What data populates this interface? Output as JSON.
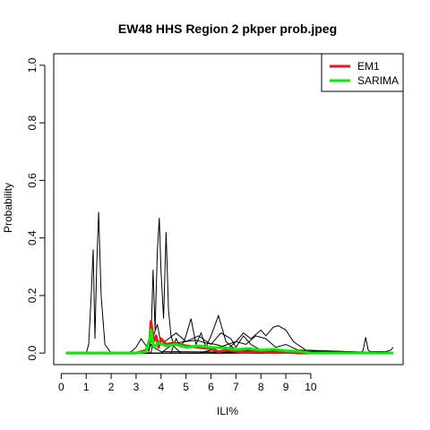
{
  "chart_data": {
    "type": "line",
    "title": "EW48 HHS Region 2 pkper prob.jpeg",
    "xlabel": "ILI%",
    "ylabel": "Probability",
    "xlim": [
      -0.3,
      13.7
    ],
    "ylim": [
      -0.04,
      1.04
    ],
    "xticks": [
      0,
      1,
      2,
      3,
      4,
      5,
      6,
      7,
      8,
      9,
      10
    ],
    "xtick_labels": [
      "0",
      "1",
      "2",
      "3",
      "4",
      "5",
      "6",
      "7",
      "8",
      "9",
      "10"
    ],
    "yticks": [
      0.0,
      0.2,
      0.4,
      0.6,
      0.8,
      1.0
    ],
    "ytick_labels": [
      "0.0",
      "0.2",
      "0.4",
      "0.6",
      "0.8",
      "1.0"
    ],
    "legend": {
      "position": "top-right"
    },
    "series": [
      {
        "name": "EM1",
        "color": "#e41a1c",
        "width": 3,
        "x": [
          0.2,
          3.0,
          3.4,
          3.55,
          3.6,
          3.7,
          3.8,
          3.9,
          4.0,
          4.2,
          4.5,
          5.0,
          5.5,
          6.0,
          6.3,
          6.7,
          7.2,
          8.0,
          8.5,
          9.0,
          9.5,
          10.0
        ],
        "y": [
          0.0,
          0.0,
          0.01,
          0.05,
          0.11,
          0.04,
          0.06,
          0.02,
          0.05,
          0.03,
          0.035,
          0.025,
          0.02,
          0.015,
          0.005,
          0.01,
          0.003,
          0.005,
          0.002,
          0.004,
          0.0,
          0.0
        ]
      },
      {
        "name": "SARIMA",
        "color": "#00ee00",
        "width": 3,
        "x": [
          0.2,
          3.0,
          3.4,
          3.55,
          3.6,
          3.7,
          3.9,
          4.2,
          4.6,
          5.0,
          5.5,
          6.0,
          6.5,
          7.0,
          7.5,
          8.0,
          8.5,
          9.0,
          9.5,
          10.0,
          12.0,
          13.3
        ],
        "y": [
          0.0,
          0.0,
          0.005,
          0.05,
          0.08,
          0.02,
          0.035,
          0.025,
          0.03,
          0.02,
          0.025,
          0.02,
          0.018,
          0.012,
          0.015,
          0.01,
          0.013,
          0.008,
          0.006,
          0.0,
          0.0,
          0.0
        ]
      }
    ],
    "thin_series": [
      {
        "color": "#000000",
        "x": [
          0.2,
          1.0,
          1.1,
          1.2,
          1.28,
          1.35,
          1.42,
          1.5,
          1.6,
          1.75,
          2.0,
          13.3
        ],
        "y": [
          0,
          0,
          0.03,
          0.2,
          0.36,
          0.05,
          0.3,
          0.49,
          0.2,
          0.03,
          0,
          0
        ]
      },
      {
        "color": "#000000",
        "x": [
          0.2,
          3.5,
          3.6,
          3.68,
          3.76,
          3.85,
          3.93,
          4.0,
          4.1,
          4.2,
          4.3,
          4.4,
          4.55,
          4.8,
          13.3
        ],
        "y": [
          0,
          0,
          0.05,
          0.29,
          0.08,
          0.35,
          0.47,
          0.28,
          0.12,
          0.42,
          0.15,
          0.06,
          0.02,
          0,
          0
        ]
      },
      {
        "color": "#000000",
        "x": [
          0.2,
          3.6,
          3.7,
          3.85,
          4.0,
          4.3,
          4.6,
          5.0,
          5.5,
          6.0,
          6.4,
          6.8,
          7.0,
          7.3,
          7.6,
          8.0,
          8.5,
          13.3
        ],
        "y": [
          0,
          0,
          0.06,
          0.1,
          0.03,
          0.05,
          0.07,
          0.04,
          0.06,
          0.03,
          0.07,
          0.05,
          0.02,
          0.06,
          0.03,
          0.01,
          0.005,
          0
        ]
      },
      {
        "color": "#000000",
        "x": [
          0.2,
          4.4,
          4.6,
          4.8,
          5.0,
          5.2,
          5.4,
          5.6,
          5.8,
          6.0,
          6.3,
          6.6,
          7.0,
          13.3
        ],
        "y": [
          0,
          0,
          0.05,
          0.02,
          0.06,
          0.12,
          0.03,
          0.07,
          0.02,
          0.06,
          0.13,
          0.04,
          0.01,
          0
        ]
      },
      {
        "color": "#000000",
        "x": [
          0.2,
          5.5,
          6.0,
          6.5,
          7.0,
          7.3,
          7.6,
          8.0,
          8.2,
          8.5,
          8.7,
          9.0,
          9.3,
          9.8,
          13.3
        ],
        "y": [
          0,
          0,
          0.01,
          0.025,
          0.04,
          0.07,
          0.05,
          0.08,
          0.06,
          0.09,
          0.095,
          0.08,
          0.04,
          0.01,
          0
        ]
      },
      {
        "color": "#000000",
        "x": [
          0.2,
          6.5,
          7.0,
          7.4,
          7.8,
          8.2,
          8.6,
          9.0,
          9.5,
          13.3
        ],
        "y": [
          0,
          0,
          0.04,
          0.03,
          0.06,
          0.05,
          0.02,
          0.03,
          0.01,
          0
        ]
      },
      {
        "color": "#000000",
        "x": [
          0.2,
          2.6,
          2.8,
          3.0,
          3.2,
          3.4,
          3.5,
          3.6,
          3.8,
          4.0,
          13.3
        ],
        "y": [
          0,
          0,
          0.005,
          0.02,
          0.05,
          0.025,
          0.01,
          0.03,
          0.015,
          0.005,
          0
        ]
      },
      {
        "color": "#000000",
        "x": [
          0.2,
          12.0,
          12.1,
          12.2,
          12.3,
          12.4,
          13.0,
          13.2,
          13.3
        ],
        "y": [
          0,
          0,
          0.01,
          0.055,
          0.01,
          0.005,
          0.005,
          0.01,
          0.02
        ]
      },
      {
        "color": "#000000",
        "x": [
          0.2,
          4.0,
          4.3,
          4.6,
          5.0,
          5.4,
          5.8,
          6.2,
          6.6,
          7.0,
          7.5,
          8.0,
          9.0,
          13.3
        ],
        "y": [
          0,
          0,
          0.02,
          0.035,
          0.04,
          0.045,
          0.035,
          0.03,
          0.02,
          0.015,
          0.01,
          0.005,
          0.002,
          0
        ]
      }
    ]
  }
}
